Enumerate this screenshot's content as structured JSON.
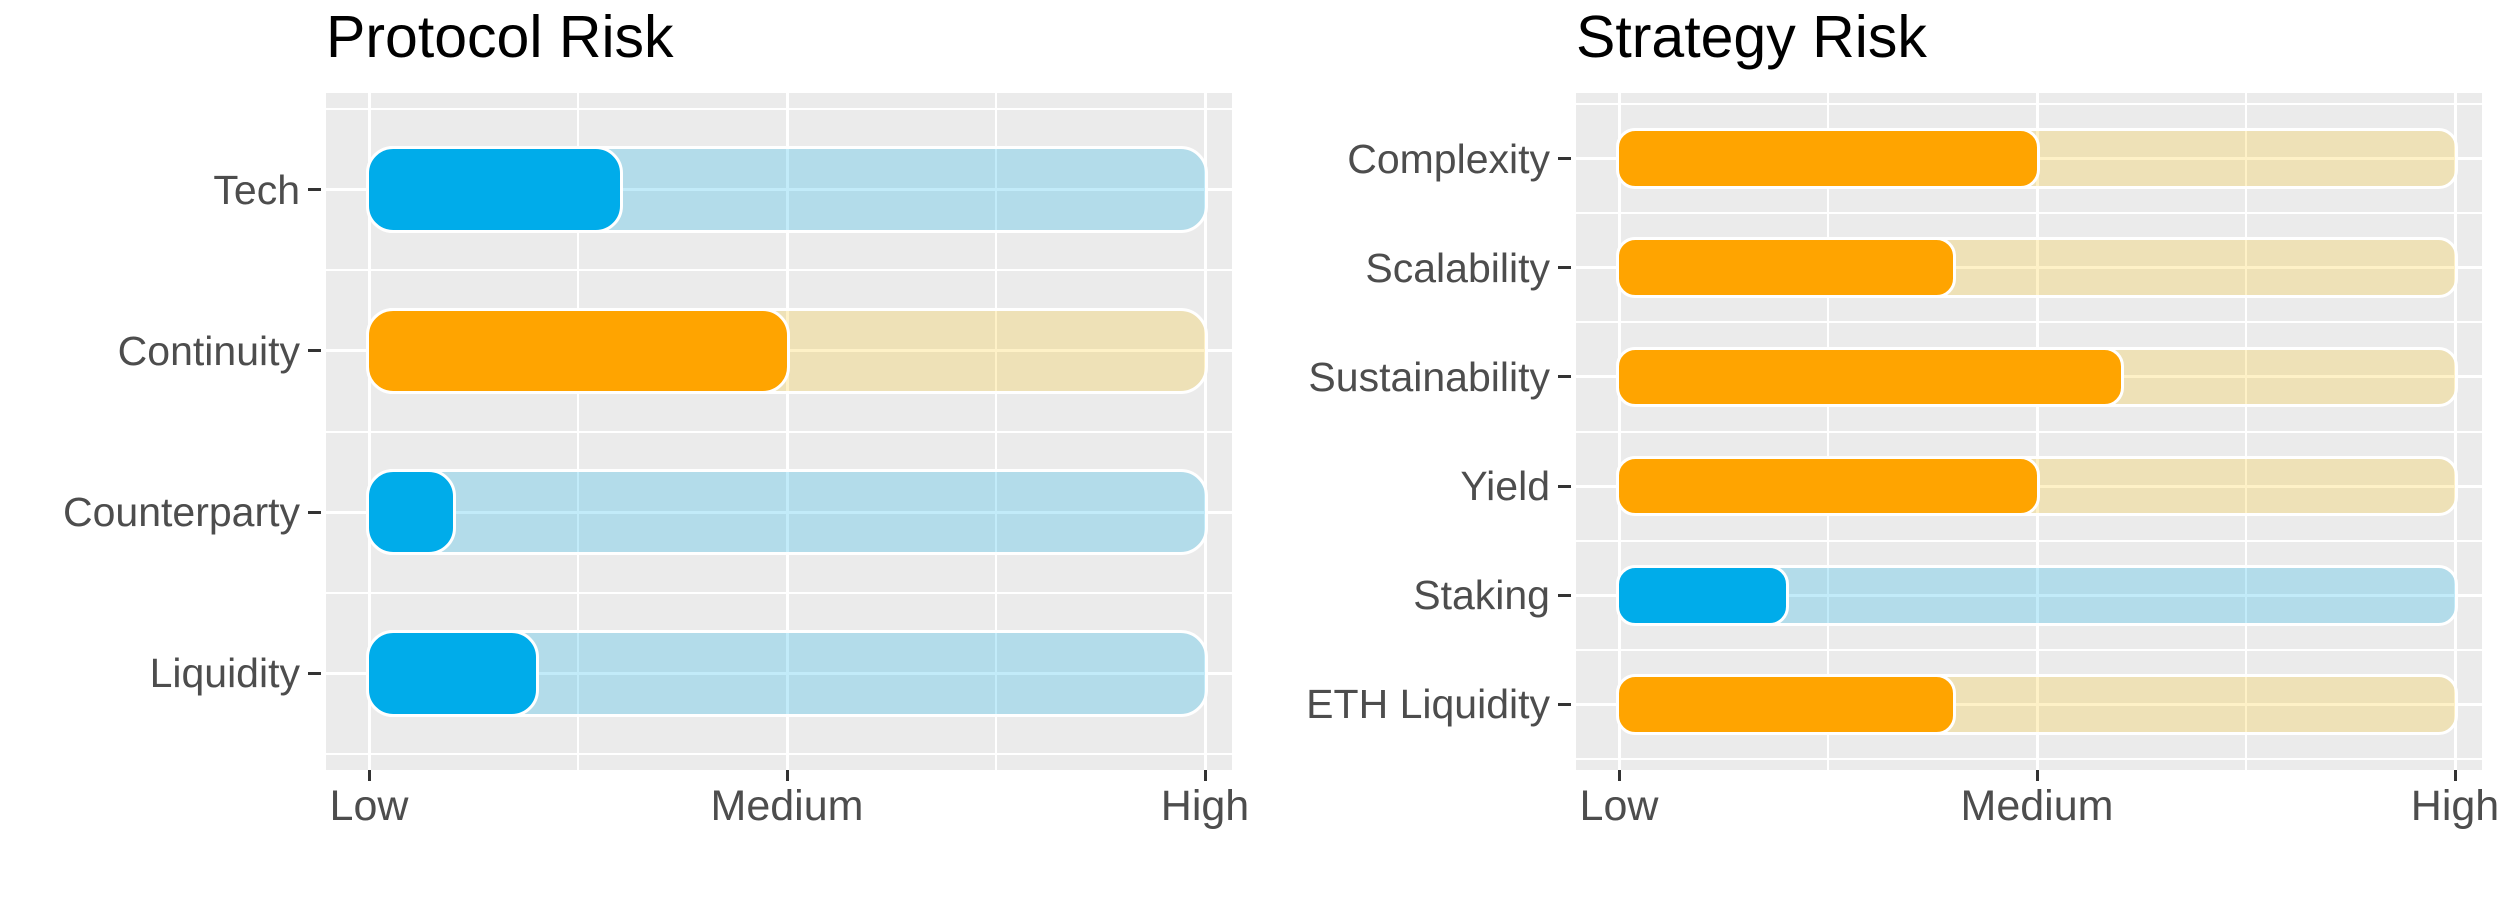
{
  "figure": {
    "background": "#FFFFFF"
  },
  "palette": {
    "blue": {
      "fill": "#00ACEA",
      "track": "rgba(0,172,232,0.24)"
    },
    "orange": {
      "fill": "#FFA400",
      "track": "rgba(250,190,0,0.22)"
    }
  },
  "style": {
    "panel_bg": "#EBEBEB",
    "grid_color": "#FFFFFF",
    "axis_text_color": "#4D4D4D",
    "tick_color": "#333333",
    "title_color": "#000000"
  },
  "chart_data": [
    {
      "type": "bar",
      "orientation": "horizontal",
      "title": "Protocol Risk",
      "categories": [
        "Tech",
        "Continuity",
        "Counterparty",
        "Liquidity"
      ],
      "values": [
        3,
        5,
        1,
        2
      ],
      "colors": [
        "blue",
        "orange",
        "blue",
        "blue"
      ],
      "track_max": 10,
      "xlim": [
        0,
        10
      ],
      "x_tick_values": [
        0,
        5,
        10
      ],
      "x_tick_labels": [
        "Low",
        "Medium",
        "High"
      ],
      "x_minor_values": [
        2.5,
        7.5
      ],
      "grid": "on",
      "legend": "none"
    },
    {
      "type": "bar",
      "orientation": "horizontal",
      "title": "Strategy Risk",
      "categories": [
        "Complexity",
        "Scalability",
        "Sustainability",
        "Yield",
        "Staking",
        "ETH Liquidity"
      ],
      "values": [
        5,
        4,
        6,
        5,
        2,
        4
      ],
      "colors": [
        "orange",
        "orange",
        "orange",
        "orange",
        "blue",
        "orange"
      ],
      "track_max": 10,
      "xlim": [
        0,
        10
      ],
      "x_tick_values": [
        0,
        5,
        10
      ],
      "x_tick_labels": [
        "Low",
        "Medium",
        "High"
      ],
      "x_minor_values": [
        2.5,
        7.5
      ],
      "grid": "on",
      "legend": "none"
    }
  ]
}
